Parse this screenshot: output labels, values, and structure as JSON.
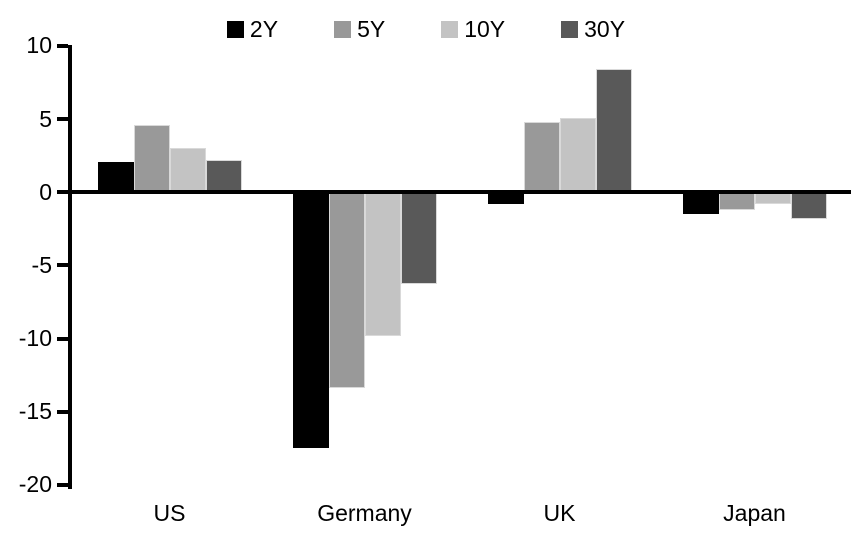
{
  "chart_data": {
    "type": "bar",
    "title": "",
    "categories": [
      "US",
      "Germany",
      "UK",
      "Japan"
    ],
    "series": [
      {
        "name": "2Y",
        "color": "#000000",
        "values": [
          2.1,
          -17.5,
          -0.8,
          -1.5
        ]
      },
      {
        "name": "5Y",
        "color": "#999999",
        "values": [
          4.6,
          -13.4,
          4.8,
          -1.2
        ]
      },
      {
        "name": "10Y",
        "color": "#c3c3c3",
        "values": [
          3.0,
          -9.8,
          5.1,
          -0.8
        ]
      },
      {
        "name": "30Y",
        "color": "#595959",
        "values": [
          2.2,
          -6.3,
          8.4,
          -1.8
        ]
      }
    ],
    "xlabel": "",
    "ylabel": "",
    "ylim": [
      -20,
      10
    ],
    "y_ticks": [
      10,
      5,
      0,
      -5,
      -10,
      -15,
      -20
    ],
    "y_tick_labels": [
      "10",
      "5",
      "0",
      "-5",
      "-10",
      "-15",
      "-20"
    ],
    "grid": false,
    "legend_position": "top",
    "colors": {
      "axis": "#000000",
      "text": "#000000",
      "bar_border": "#d9d9d9",
      "background": "#ffffff"
    }
  }
}
